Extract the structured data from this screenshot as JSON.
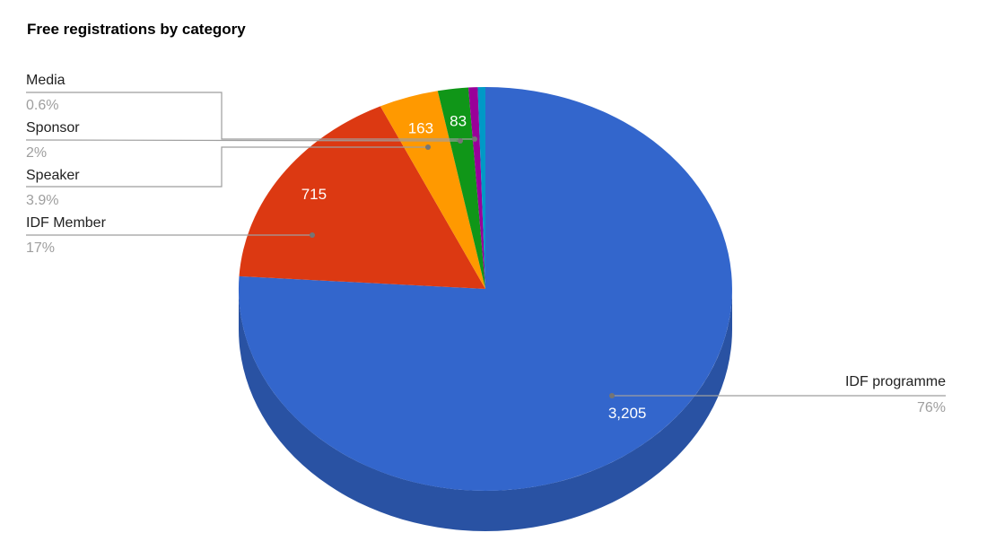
{
  "chart_data": {
    "type": "pie",
    "is_3d": true,
    "title": "Free registrations by category",
    "legend_position": "outside-callouts",
    "slices": [
      {
        "label": "IDF programme",
        "value": 3205,
        "value_label": "3,205",
        "pct": 76,
        "pct_label": "76%",
        "color": "#3366cc"
      },
      {
        "label": "IDF Member",
        "value": 715,
        "value_label": "715",
        "pct": 17,
        "pct_label": "17%",
        "color": "#dc3912"
      },
      {
        "label": "Speaker",
        "value": 163,
        "value_label": "163",
        "pct": 3.9,
        "pct_label": "3.9%",
        "color": "#ff9900"
      },
      {
        "label": "Sponsor",
        "value": 83,
        "value_label": "83",
        "pct": 2,
        "pct_label": "2%",
        "color": "#109618"
      },
      {
        "label": "Media",
        "pct": 0.6,
        "pct_label": "0.6%",
        "color": "#990099"
      },
      {
        "label": "",
        "pct": 0.5,
        "color": "#0099c6"
      }
    ],
    "styles": {
      "background": "#ffffff",
      "title_color": "#000000",
      "label_color": "#212121",
      "pct_color": "#9e9e9e",
      "connector_color": "#9e9e9e",
      "dot_color": "#757575",
      "value_color": "#ffffff",
      "rim_color": "#2952a3"
    }
  }
}
